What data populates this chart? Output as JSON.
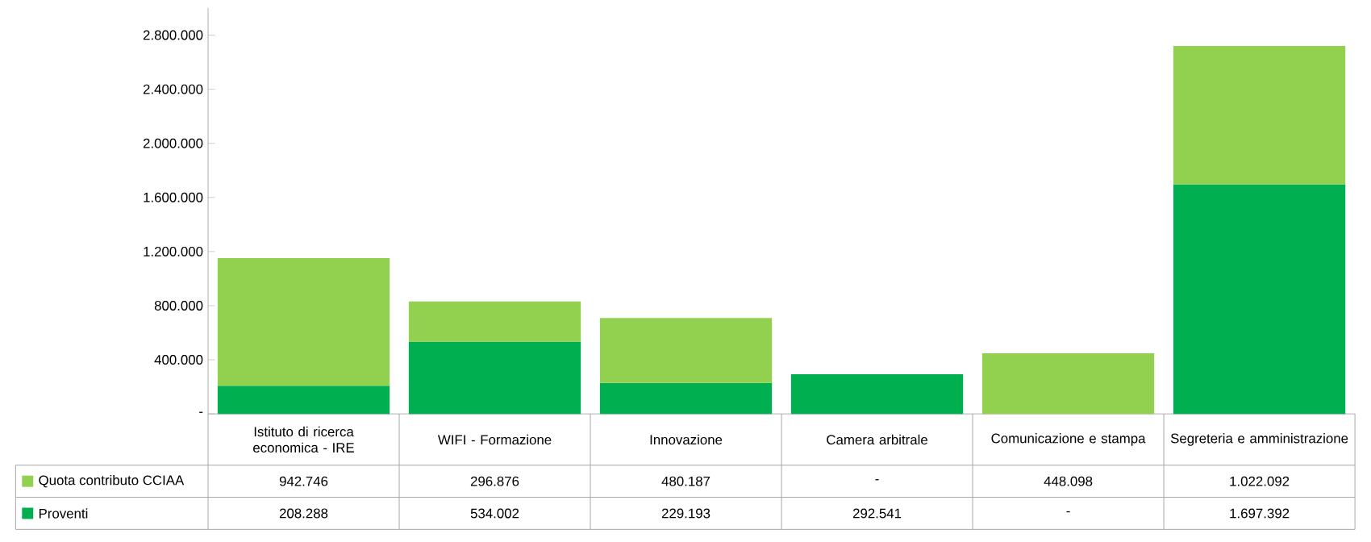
{
  "chart_data": {
    "type": "bar",
    "stacked": true,
    "categories": [
      "Istituto di ricerca economica - IRE",
      "WIFI - Formazione",
      "Innovazione",
      "Camera arbitrale",
      "Comunicazione e stampa",
      "Segreteria e amministrazione"
    ],
    "series": [
      {
        "name": "Proventi",
        "color": "#00b050",
        "values": [
          208288,
          534002,
          229193,
          292541,
          null,
          1697392
        ],
        "value_labels": [
          "208.288",
          "534.002",
          "229.193",
          "292.541",
          "-",
          "1.697.392"
        ]
      },
      {
        "name": "Quota contributo CCIAA",
        "color": "#92d050",
        "values": [
          942746,
          296876,
          480187,
          null,
          448098,
          1022092
        ],
        "value_labels": [
          "942.746",
          "296.876",
          "480.187",
          "-",
          "448.098",
          "1.022.092"
        ]
      }
    ],
    "ylim": [
      0,
      3000000
    ],
    "yticks": [
      {
        "value": 0,
        "label": "-"
      },
      {
        "value": 400000,
        "label": "400.000"
      },
      {
        "value": 800000,
        "label": "800.000"
      },
      {
        "value": 1200000,
        "label": "1.200.000"
      },
      {
        "value": 1600000,
        "label": "1.600.000"
      },
      {
        "value": 2000000,
        "label": "2.000.000"
      },
      {
        "value": 2400000,
        "label": "2.400.000"
      },
      {
        "value": 2800000,
        "label": "2.800.000"
      }
    ],
    "legend": "bottom left"
  }
}
